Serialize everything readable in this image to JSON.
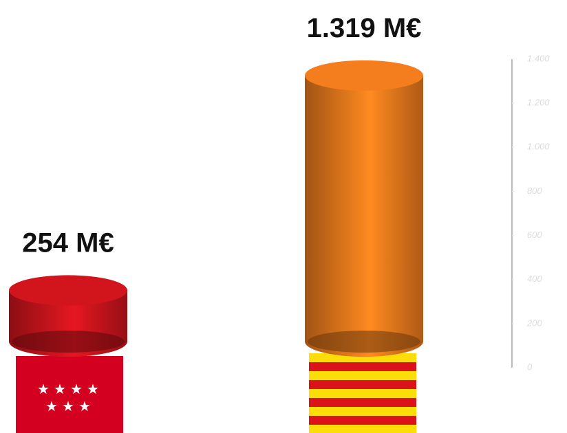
{
  "chart_data": {
    "type": "cylinder",
    "values": [
      254,
      1319
    ],
    "value_labels": [
      "254 M€",
      "1.319 M€"
    ],
    "colors": [
      "#c8141c",
      "#e8781c"
    ],
    "ylim": [
      0,
      1400
    ],
    "yticks": [
      0,
      200,
      400,
      600,
      800,
      {
        "value": 1000,
        "label": "1.000"
      },
      {
        "value": 1200,
        "label": "1.200"
      },
      {
        "value": 1400,
        "label": "1.400"
      }
    ]
  }
}
